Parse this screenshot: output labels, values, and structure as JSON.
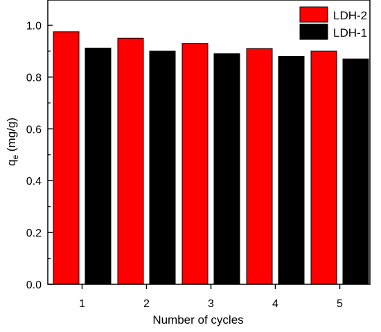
{
  "chart_data": {
    "type": "bar",
    "categories": [
      "1",
      "2",
      "3",
      "4",
      "5"
    ],
    "series": [
      {
        "name": "LDH-2",
        "values": [
          0.975,
          0.95,
          0.93,
          0.91,
          0.9
        ],
        "color": "#ff0000"
      },
      {
        "name": "LDH-1",
        "values": [
          0.912,
          0.9,
          0.89,
          0.88,
          0.87
        ],
        "color": "#000000"
      }
    ],
    "xlabel": "Number of cycles",
    "ylabel": {
      "main": "q",
      "sub": "e",
      "unit": " (mg/g)"
    },
    "ylim": [
      0.0,
      1.0
    ],
    "yticks": [
      "0.0",
      "0.2",
      "0.4",
      "0.6",
      "0.8",
      "1.0"
    ],
    "legend_position": "top-right",
    "grid": false
  }
}
